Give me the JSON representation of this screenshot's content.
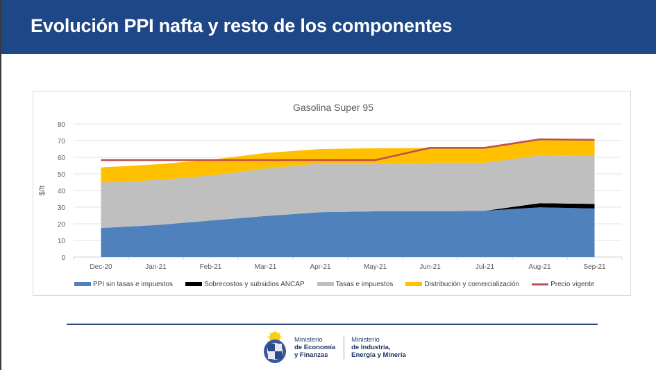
{
  "header": {
    "title": "Evolución PPI nafta y resto de los componentes"
  },
  "colors": {
    "header_bg": "#1d4787",
    "ppi": "#4f81bd",
    "sobrecostos": "#000000",
    "tasas": "#bfbfbf",
    "distribucion": "#ffc000",
    "precio": "#c0504d"
  },
  "chart_data": {
    "type": "area",
    "stacked": true,
    "title": "Gasolina Super 95",
    "xlabel": "",
    "ylabel": "$/lt",
    "ylim": [
      0,
      80
    ],
    "yticks": [
      0,
      10,
      20,
      30,
      40,
      50,
      60,
      70,
      80
    ],
    "grid": true,
    "legend_position": "bottom",
    "categories": [
      "Dec-20",
      "Jan-21",
      "Feb-21",
      "Mar-21",
      "Apr-21",
      "May-21",
      "Jun-21",
      "Jul-21",
      "Aug-21",
      "Sep-21"
    ],
    "series": [
      {
        "name": "PPI sin tasas e impuestos",
        "kind": "area",
        "color": "#4f81bd",
        "values": [
          17.5,
          19.2,
          22.0,
          24.7,
          27.0,
          27.5,
          27.5,
          27.8,
          29.9,
          29.2
        ]
      },
      {
        "name": "Sobrecostos y subsidios ANCAP",
        "kind": "area",
        "color": "#000000",
        "values": [
          0,
          0,
          0,
          0,
          0,
          0,
          0,
          0,
          2.5,
          2.8
        ]
      },
      {
        "name": "Tasas e impuestos",
        "kind": "area",
        "color": "#bfbfbf",
        "values": [
          27.3,
          27.1,
          27.0,
          28.5,
          29.3,
          28.8,
          29.2,
          28.9,
          28.7,
          28.8
        ]
      },
      {
        "name": "Distribución y comercialización",
        "kind": "area",
        "color": "#ffc000",
        "values": [
          9.1,
          9.4,
          9.5,
          9.4,
          8.7,
          9.1,
          8.8,
          8.9,
          9.7,
          9.5
        ]
      },
      {
        "name": "Precio vigente",
        "kind": "line",
        "color": "#c0504d",
        "values": [
          58.3,
          58.3,
          58.3,
          58.3,
          58.3,
          58.3,
          65.7,
          65.7,
          70.8,
          70.5
        ]
      }
    ]
  },
  "legend": [
    {
      "label": "PPI sin tasas e impuestos",
      "color": "#4f81bd",
      "kind": "area"
    },
    {
      "label": "Sobrecostos y subsidios ANCAP",
      "color": "#000000",
      "kind": "area"
    },
    {
      "label": "Tasas e impuestos",
      "color": "#bfbfbf",
      "kind": "area"
    },
    {
      "label": "Distribución y comercialización",
      "color": "#ffc000",
      "kind": "area"
    },
    {
      "label": "Precio vigente",
      "color": "#c0504d",
      "kind": "line"
    }
  ],
  "footer": {
    "ministry1": {
      "line1": "Ministerio",
      "line2": "de Economía",
      "line3": "y Finanzas"
    },
    "ministry2": {
      "line1": "Ministerio",
      "line2": "de Industria,",
      "line3": "Energía y Minería"
    }
  }
}
